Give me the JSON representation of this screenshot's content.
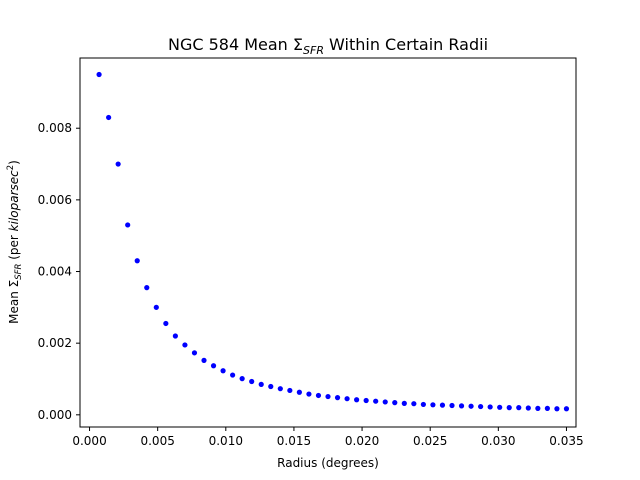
{
  "chart_data": {
    "type": "scatter",
    "title_main": "NGC 584 Mean Σ",
    "title_sub": "SFR",
    "title_tail": " Within Certain Radii",
    "xlabel": "Radius (degrees)",
    "ylabel_main": "Mean Σ",
    "ylabel_sub": "SFR",
    "ylabel_mid": " (per ",
    "ylabel_italic": "kiloparsec",
    "ylabel_sup": "2",
    "ylabel_close": ")",
    "xlim": [
      -0.0007,
      0.0357
    ],
    "ylim": [
      -0.00034,
      0.00996
    ],
    "xticks": [
      0.0,
      0.005,
      0.01,
      0.015,
      0.02,
      0.025,
      0.03,
      0.035
    ],
    "xtick_labels": [
      "0.000",
      "0.005",
      "0.010",
      "0.015",
      "0.020",
      "0.025",
      "0.030",
      "0.035"
    ],
    "yticks": [
      0.0,
      0.002,
      0.004,
      0.006,
      0.008
    ],
    "ytick_labels": [
      "0.000",
      "0.002",
      "0.004",
      "0.006",
      "0.008"
    ],
    "grid": false,
    "color": "#0000ff",
    "series": [
      {
        "x": [
          0.0007,
          0.0014,
          0.0021,
          0.0028,
          0.0035,
          0.0042,
          0.0049,
          0.0056,
          0.0063,
          0.007,
          0.0077,
          0.0084,
          0.0091,
          0.0098,
          0.0105,
          0.0112,
          0.0119,
          0.0126,
          0.0133,
          0.014,
          0.0147,
          0.0154,
          0.0161,
          0.0168,
          0.0175,
          0.0182,
          0.0189,
          0.0196,
          0.0203,
          0.021,
          0.0217,
          0.0224,
          0.0231,
          0.0238,
          0.0245,
          0.0252,
          0.0259,
          0.0266,
          0.0273,
          0.028,
          0.0287,
          0.0294,
          0.0301,
          0.0308,
          0.0315,
          0.0322,
          0.0329,
          0.0336,
          0.0343,
          0.035
        ],
        "y": [
          0.0095,
          0.0083,
          0.007,
          0.0053,
          0.0043,
          0.00355,
          0.003,
          0.00255,
          0.0022,
          0.00195,
          0.00173,
          0.00152,
          0.00137,
          0.00123,
          0.00111,
          0.00101,
          0.00093,
          0.00085,
          0.00079,
          0.00073,
          0.00068,
          0.00063,
          0.00058,
          0.00054,
          0.00051,
          0.00048,
          0.00045,
          0.00042,
          0.0004,
          0.00038,
          0.00036,
          0.00034,
          0.00032,
          0.00031,
          0.00029,
          0.00028,
          0.00027,
          0.00026,
          0.00025,
          0.00024,
          0.00023,
          0.00022,
          0.00021,
          0.0002,
          0.0002,
          0.00019,
          0.00018,
          0.00018,
          0.00017,
          0.00017
        ]
      }
    ]
  }
}
